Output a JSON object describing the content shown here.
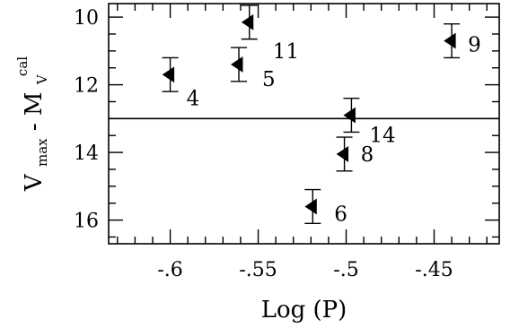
{
  "chart_data": {
    "type": "scatter",
    "xlabel": "Log (P)",
    "ylabel": {
      "main": "V",
      "main_sub": "max",
      "separator": " - ",
      "second": "M",
      "second_sub": "V",
      "second_sup": "cal"
    },
    "xlim": [
      -0.635,
      -0.413
    ],
    "ylim": [
      16.7,
      9.6
    ],
    "y_inverted": true,
    "x_ticks": [
      -0.6,
      -0.55,
      -0.5,
      -0.45
    ],
    "x_tick_labels": [
      "-.6",
      "-.55",
      "-.5",
      "-.45"
    ],
    "y_ticks": [
      10,
      12,
      14,
      16
    ],
    "y_tick_labels": [
      "10",
      "12",
      "14",
      "16"
    ],
    "reference_line_y": 13.0,
    "marker": "left-pointing-triangle",
    "points": [
      {
        "label": "4",
        "x": -0.6,
        "y": 11.7,
        "err": 0.5
      },
      {
        "label": "5",
        "x": -0.561,
        "y": 11.4,
        "err": 0.5
      },
      {
        "label": "11",
        "x": -0.555,
        "y": 10.15,
        "err": 0.5
      },
      {
        "label": "6",
        "x": -0.519,
        "y": 15.6,
        "err": 0.5
      },
      {
        "label": "8",
        "x": -0.501,
        "y": 14.05,
        "err": 0.5
      },
      {
        "label": "14",
        "x": -0.497,
        "y": 12.9,
        "err": 0.5
      },
      {
        "label": "9",
        "x": -0.44,
        "y": 10.7,
        "err": 0.5
      }
    ]
  }
}
